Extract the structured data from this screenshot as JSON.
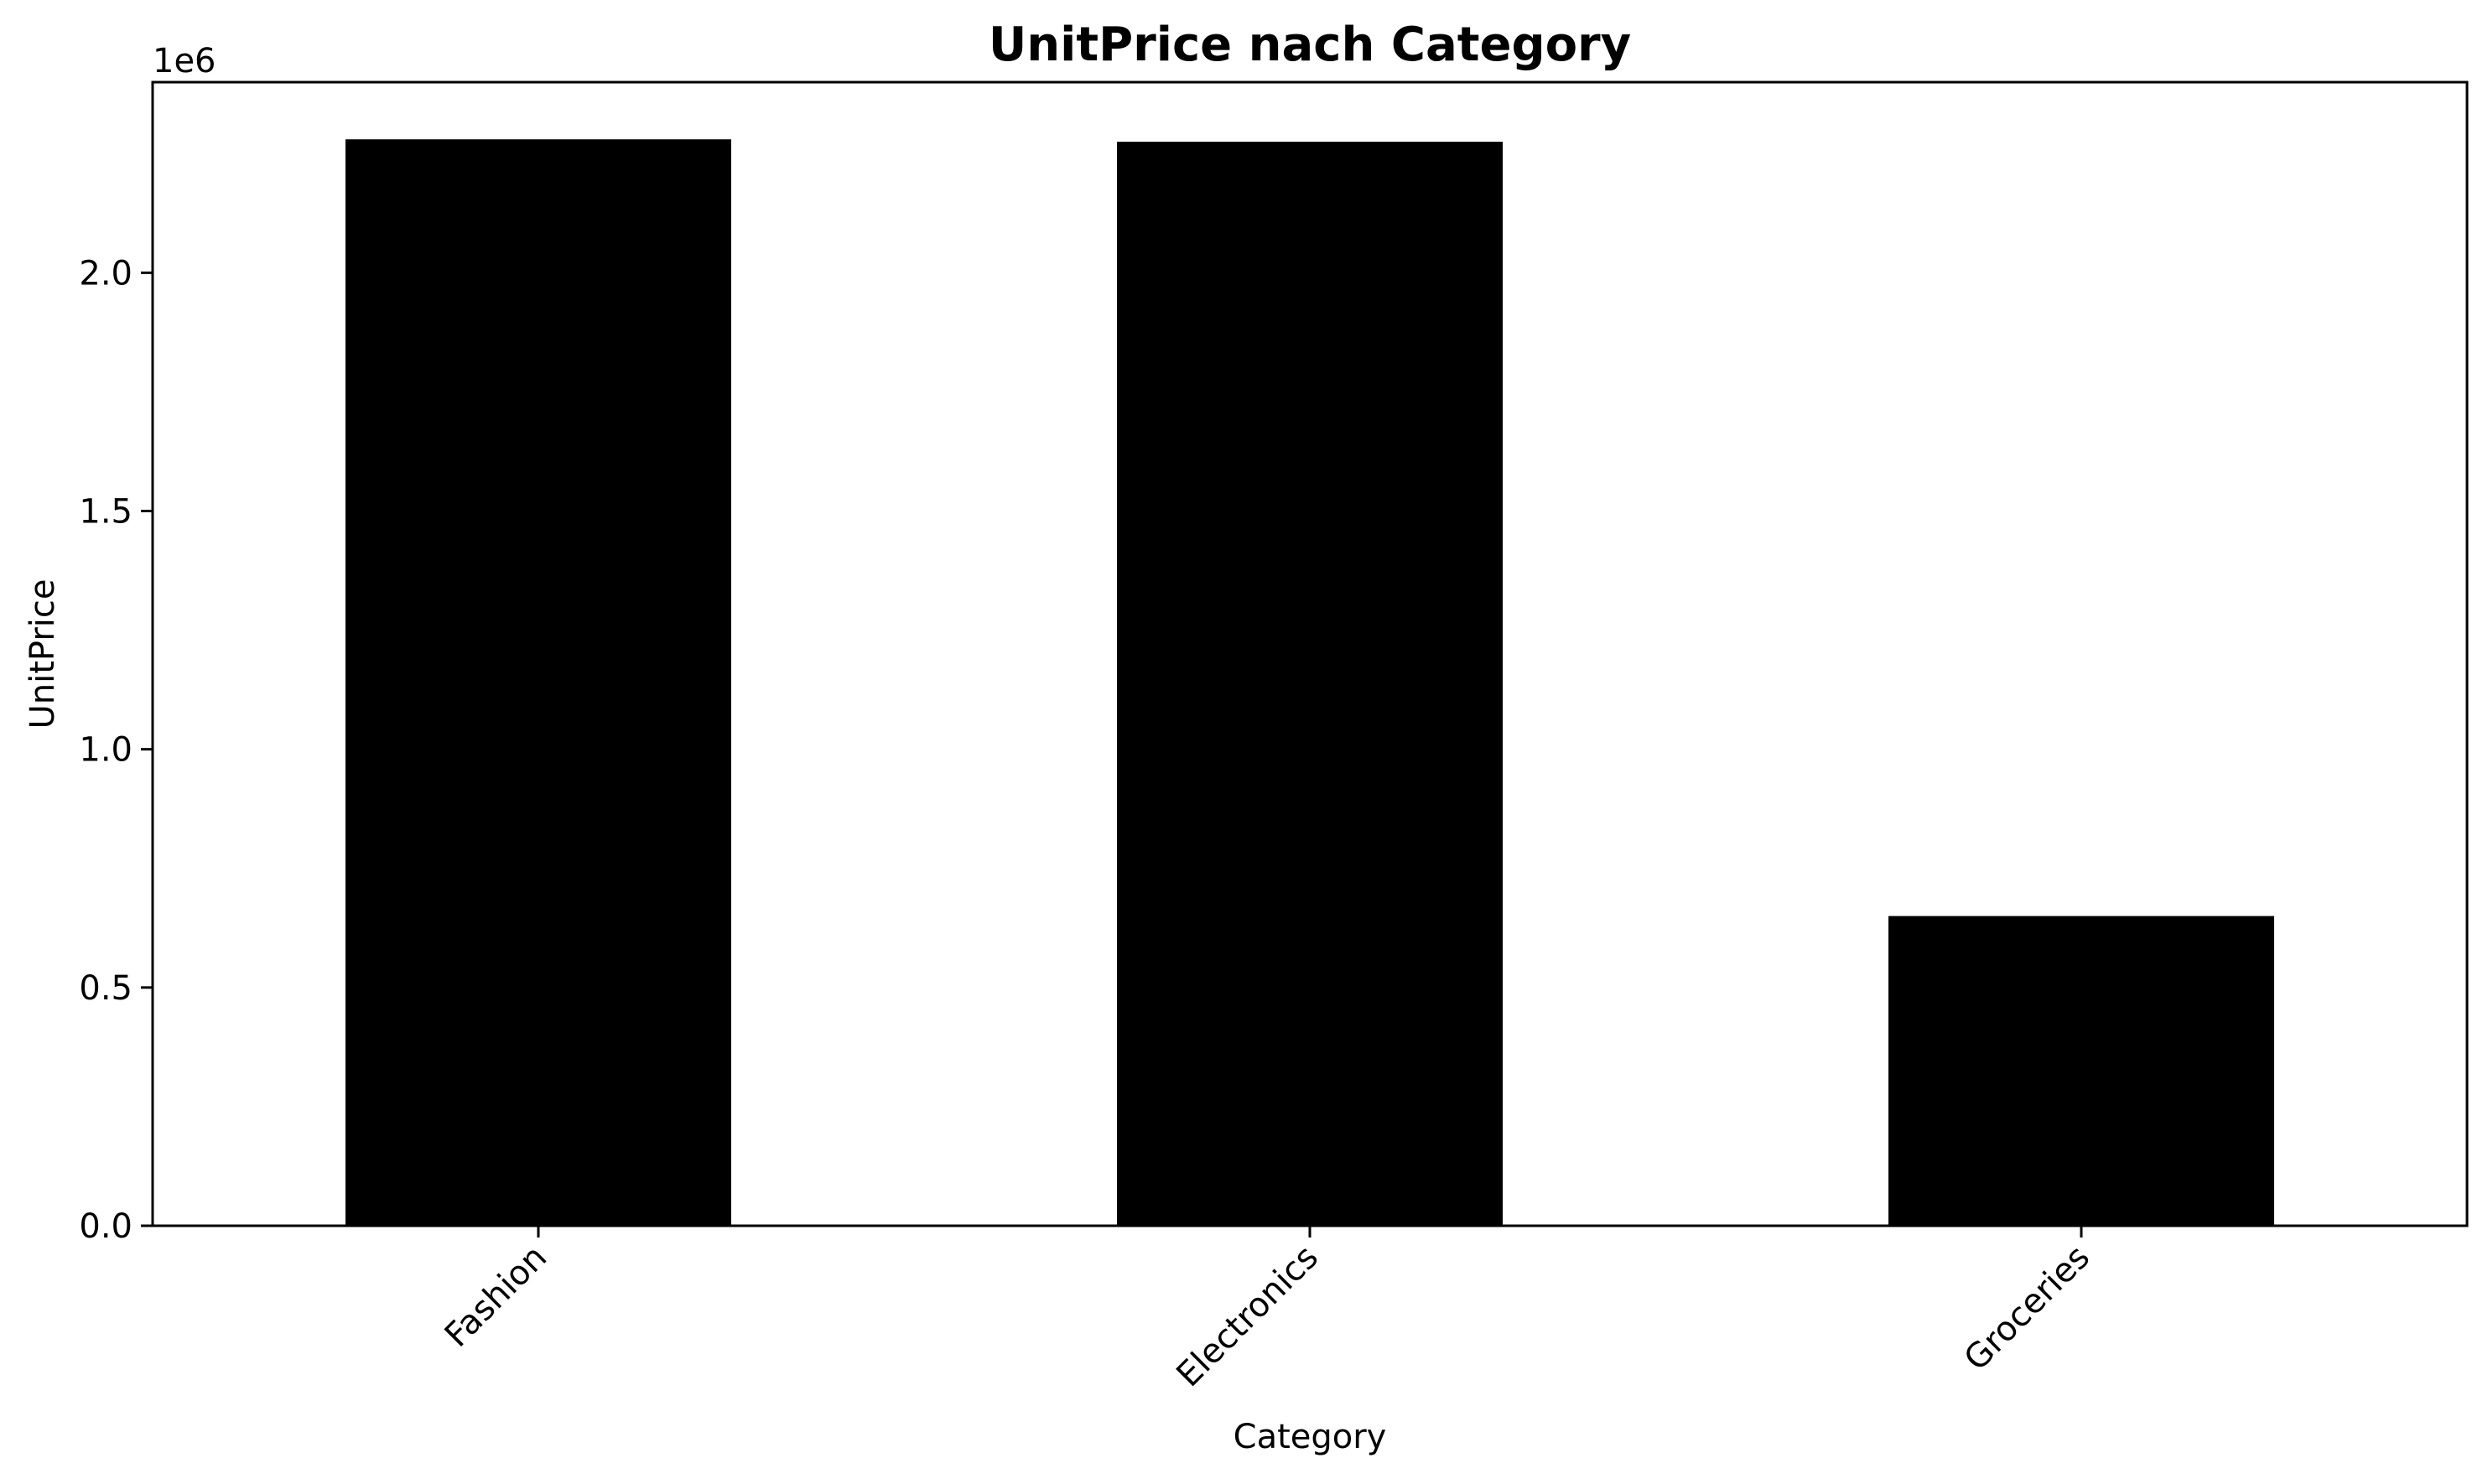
{
  "chart_data": {
    "type": "bar",
    "title": "UnitPrice nach Category",
    "xlabel": "Category",
    "ylabel": "UnitPrice",
    "y_offset_label": "1e6",
    "categories": [
      "Fashion",
      "Electronics",
      "Groceries"
    ],
    "values": [
      2280000,
      2275000,
      650000
    ],
    "ylim": [
      0,
      2400000
    ],
    "yticks": [
      0,
      500000,
      1000000,
      1500000,
      2000000
    ],
    "ytick_labels": [
      "0.0",
      "0.5",
      "1.0",
      "1.5",
      "2.0"
    ],
    "bar_color": "#000000",
    "grid": false,
    "legend": "none"
  }
}
